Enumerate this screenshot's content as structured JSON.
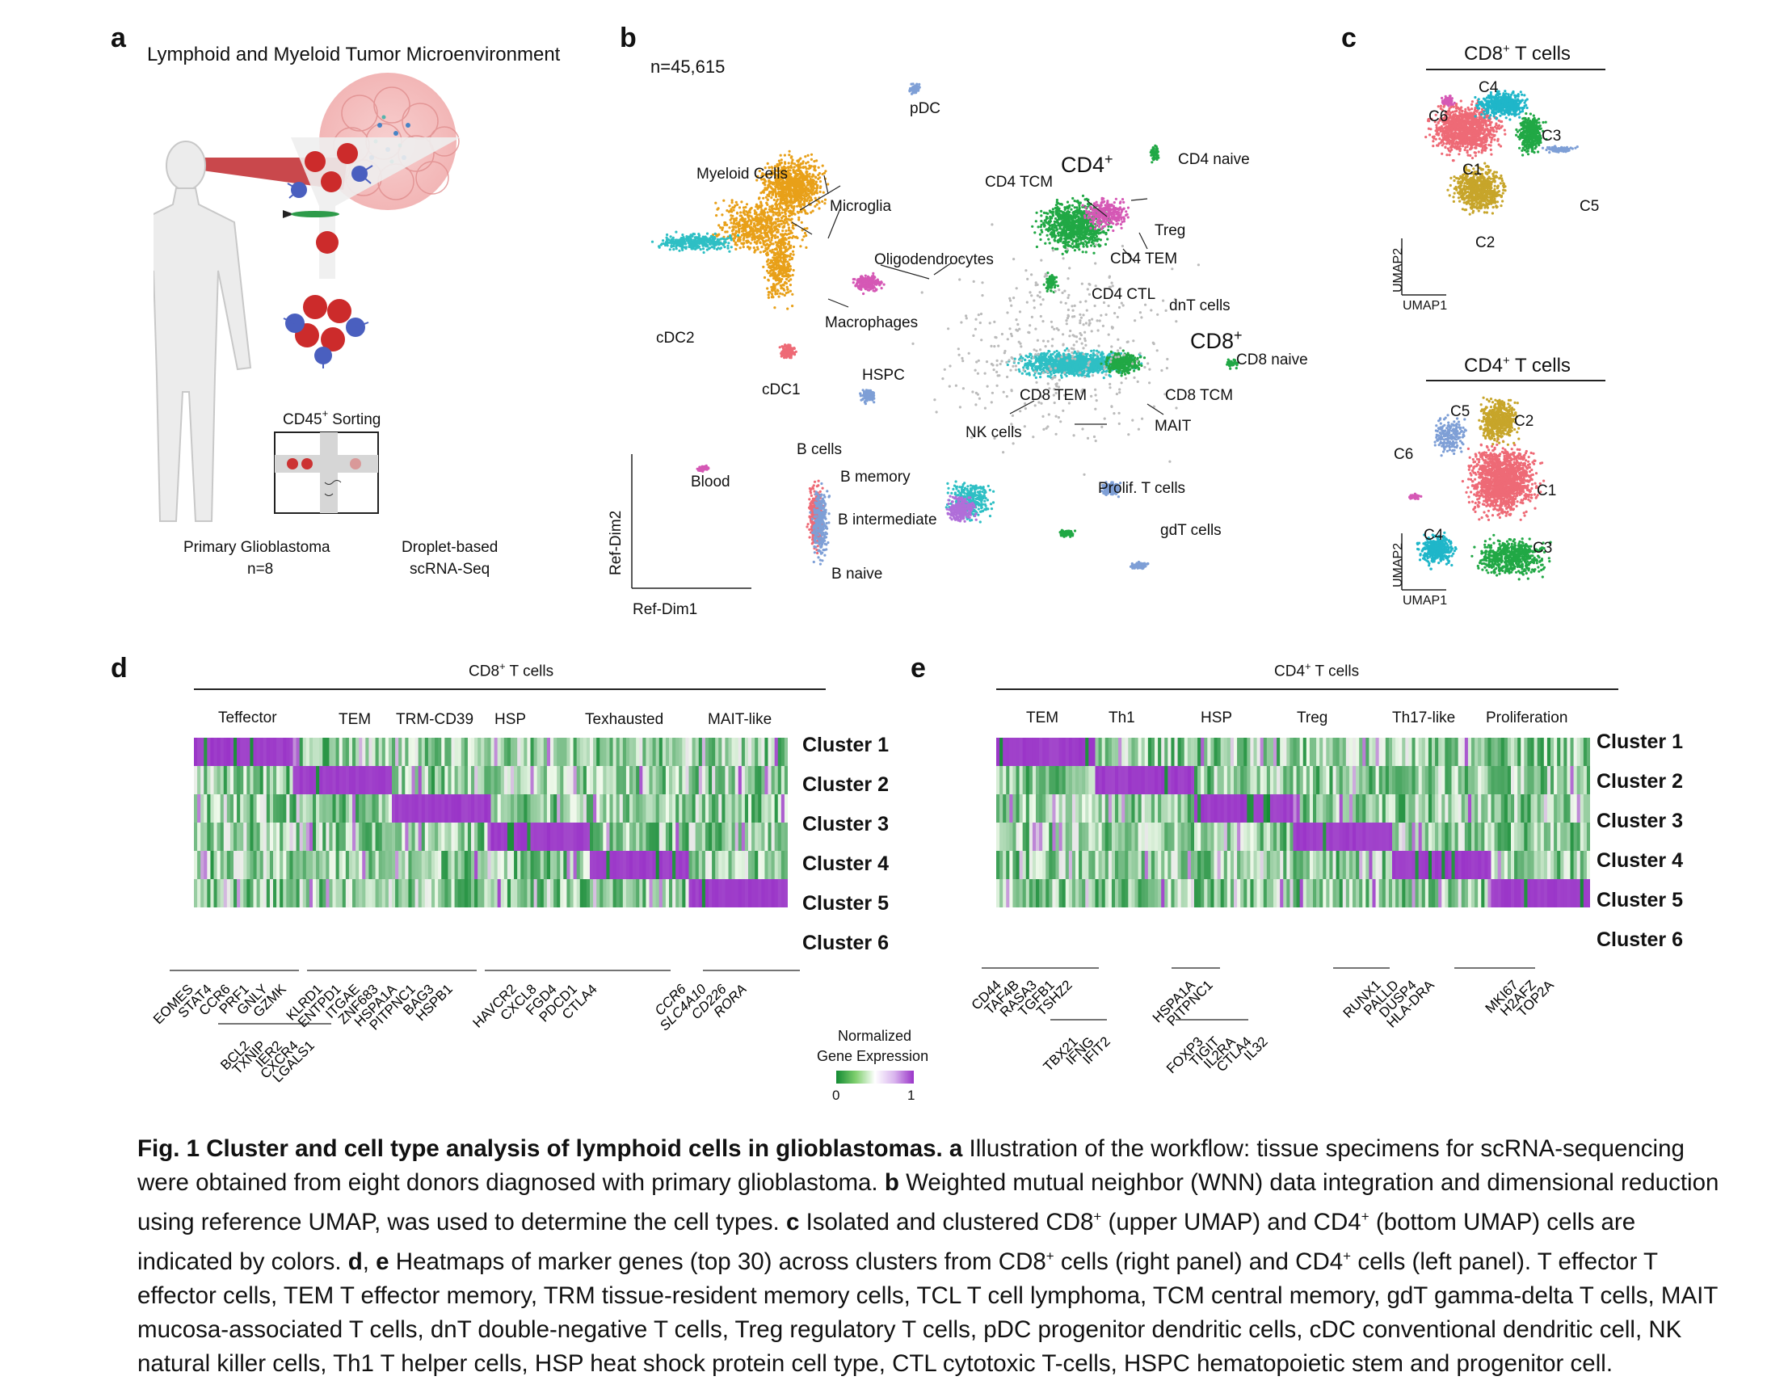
{
  "panels": {
    "a": {
      "label": "a",
      "title": "Lymphoid and Myeloid Tumor Microenvironment",
      "sorting": "CD45",
      "sorting_sup": "+",
      "sorting_suffix": "Sorting",
      "left_caption_1": "Primary Glioblastoma",
      "left_caption_2": "n=8",
      "right_caption_1": "Droplet-based",
      "right_caption_2": "scRNA-Seq"
    },
    "b": {
      "label": "b",
      "n": "n=45,615",
      "xaxis": "Ref-Dim1",
      "yaxis": "Ref-Dim2",
      "labels": {
        "pdc": "pDC",
        "myeloid": "Myeloid Cells",
        "microglia": "Microglia",
        "oligo": "Oligodendrocytes",
        "macrophages": "Macrophages",
        "cdc2": "cDC2",
        "cdc1": "cDC1",
        "hspc": "HSPC",
        "bcells": "B cells",
        "bmemory": "B memory",
        "bint": "B intermediate",
        "bnaive": "B naive",
        "blood": "Blood",
        "cd4": "CD4",
        "cd4naive": "CD4 naive",
        "cd4tcm": "CD4 TCM",
        "treg": "Treg",
        "cd4tem": "CD4 TEM",
        "cd4ctl": "CD4 CTL",
        "dnt": "dnT cells",
        "cd8": "CD8",
        "cd8naive": "CD8 naive",
        "cd8tem": "CD8 TEM",
        "cd8tcm": "CD8 TCM",
        "nk": "NK cells",
        "mait": "MAIT",
        "prolif": "Prolif. T cells",
        "gdt": "gdT cells",
        "plus": "+"
      }
    },
    "c": {
      "label": "c",
      "top_title": "CD8",
      "top_title_suffix": "T cells",
      "bottom_title": "CD4",
      "bottom_title_suffix": "T cells",
      "plus": "+",
      "umap1": "UMAP1",
      "umap2": "UMAP2",
      "top_clusters": [
        "C1",
        "C2",
        "C3",
        "C4",
        "C5",
        "C6"
      ],
      "bottom_clusters": [
        "C1",
        "C2",
        "C3",
        "C4",
        "C5",
        "C6"
      ]
    },
    "d": {
      "label": "d",
      "title": "CD8",
      "title_suffix": "T cells",
      "plus": "+",
      "groups": [
        "Teffector",
        "TEM",
        "TRM-CD39",
        "HSP",
        "Texhausted",
        "MAIT-like"
      ],
      "clusters": [
        "Cluster 1",
        "Cluster 2",
        "Cluster 3",
        "Cluster 4",
        "Cluster 5",
        "Cluster 6"
      ],
      "genes_top": [
        "EOMES",
        "STAT4",
        "CCR6",
        "PRF1",
        "GNLY",
        "GZMK",
        "KLRD1",
        "ENTPD1",
        "ITGAE",
        "ZNF683",
        "HSPA1A",
        "PITPNC1",
        "BAG3",
        "HSPB1",
        "HAVCR2",
        "CXCL8",
        "FGD4",
        "PDCD1",
        "CTLA4"
      ],
      "genes_bottom": [
        "BCL2",
        "TXNIP",
        "IER2",
        "CXCR4",
        "LGALS1"
      ],
      "genes_italic": [
        "CCR6",
        "SLC4A10",
        "CD226",
        "RORA"
      ]
    },
    "e": {
      "label": "e",
      "title": "CD4",
      "title_suffix": "T cells",
      "plus": "+",
      "groups": [
        "TEM",
        "Th1",
        "HSP",
        "Treg",
        "Th17-like",
        "Proliferation"
      ],
      "clusters": [
        "Cluster 1",
        "Cluster 2",
        "Cluster 3",
        "Cluster 4",
        "Cluster 5",
        "Cluster 6"
      ],
      "genes_top": [
        "CD44",
        "TAF4B",
        "RASA3",
        "TGFB1",
        "TSHZ2",
        "HSPA1A",
        "PITPNC1",
        "RUNX1",
        "PALLD",
        "DUSP4",
        "HLA-DRA",
        "MKI67",
        "H2AFZ",
        "TOP2A"
      ],
      "genes_bottom": [
        "TBX21",
        "IFNG",
        "IFIT2",
        "FOXP3",
        "TIGIT",
        "IL2RA",
        "CTLA4",
        "IL32"
      ]
    },
    "legend": {
      "title_1": "Normalized",
      "title_2": "Gene Expression",
      "min": "0",
      "max": "1"
    }
  },
  "colors": {
    "c1": "#ee6a76",
    "c2": "#c7a52a",
    "c3": "#21a845",
    "c4": "#1fb6c9",
    "c5": "#7e9fd6",
    "c6": "#d558b5",
    "high": "#9a34c8",
    "low": "#138a33",
    "orange": "#e8a019",
    "cyan": "#2ebfc4"
  },
  "caption": {
    "fig": "Fig. 1 Cluster and cell type analysis of lymphoid cells in glioblastomas.",
    "a_label": "a",
    "a_text": "Illustration of the workflow: tissue specimens for scRNA-sequencing were obtained from eight donors diagnosed with primary glioblastoma.",
    "b_label": "b",
    "b_text": "Weighted mutual neighbor (WNN) data integration and dimensional reduction using reference UMAP, was used to determine the cell types.",
    "c_label": "c",
    "c_text_1": "Isolated and clustered CD8",
    "c_text_2": "(upper UMAP) and CD4",
    "c_text_3": "(bottom UMAP) cells are indicated by colors.",
    "de_label_d": "d",
    "de_sep": ", ",
    "de_label_e": "e",
    "de_text_1": "Heatmaps of marker genes (top 30) across clusters from CD8",
    "de_text_2": "cells (right panel) and CD4",
    "de_text_3": "cells (left panel). T effector T effector cells, TEM T effector memory, TRM tissue-resident memory cells, TCL T cell lymphoma, TCM central memory, gdT gamma-delta T cells, MAIT mucosa-associated T cells, dnT double-negative T cells, Treg regulatory T cells, pDC progenitor dendritic cells, cDC conventional dendritic cell, NK natural killer cells, Th1 T helper cells, HSP heat shock protein cell type, CTL cytotoxic T-cells, HSPC hematopoietic stem and progenitor cell.",
    "plus": "+"
  }
}
